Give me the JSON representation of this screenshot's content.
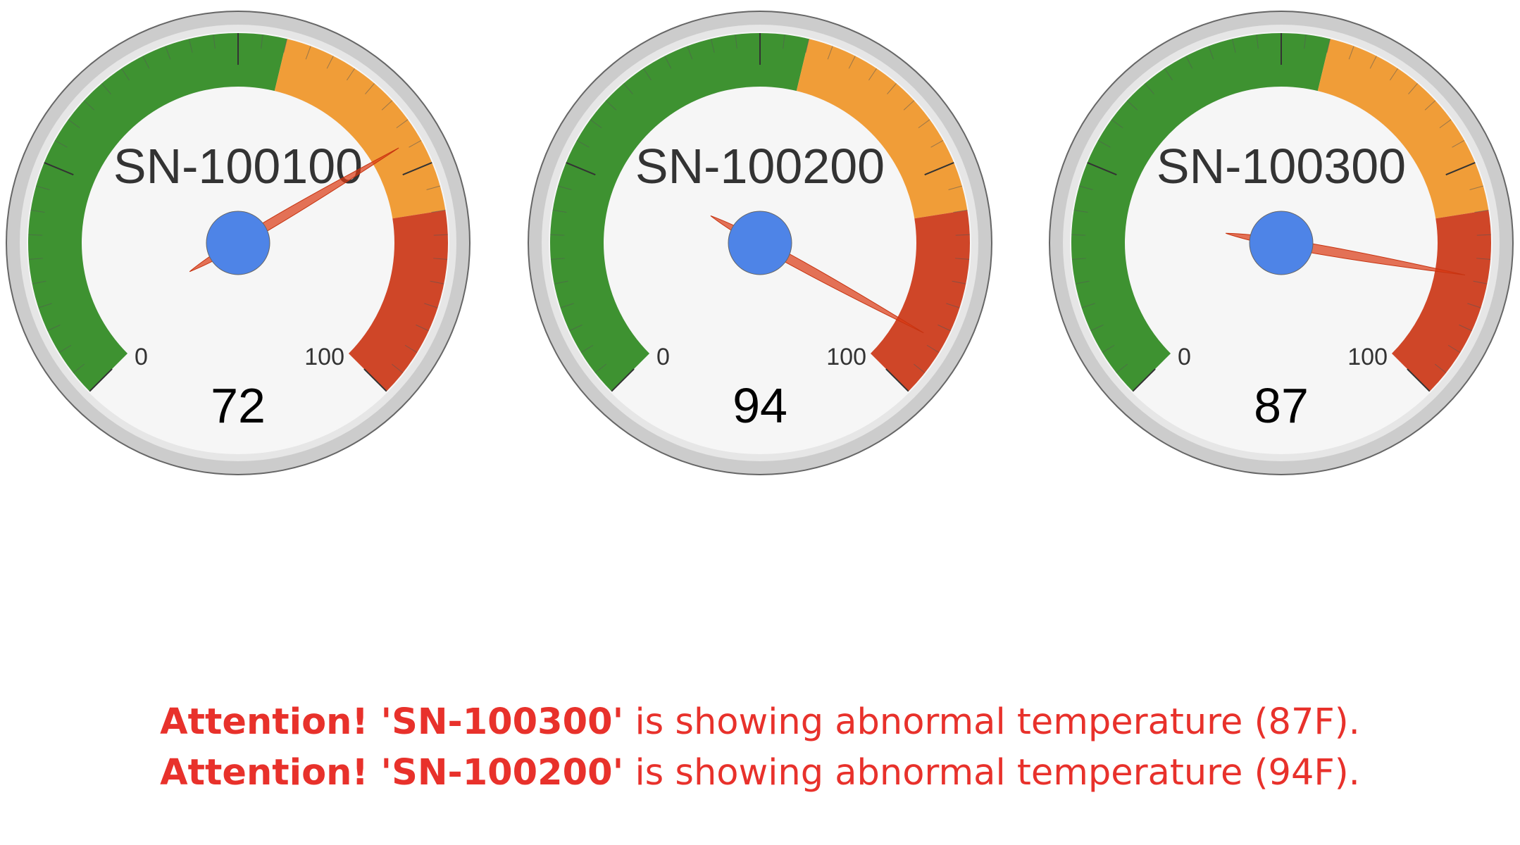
{
  "gauge_config": {
    "min": 0,
    "max": 100,
    "min_label": "0",
    "max_label": "100",
    "ranges": [
      {
        "from": 0,
        "to": 55,
        "color": "#3e9231"
      },
      {
        "from": 55,
        "to": 80,
        "color": "#f09d38"
      },
      {
        "from": 80,
        "to": 100,
        "color": "#cf4628"
      }
    ],
    "major_ticks": 5,
    "minor_ticks_per_major": 10,
    "bezel_color": "#cccccc",
    "face_color": "#f6f6f6",
    "needle_color": "#dc3912",
    "hub_color": "#4e84e7"
  },
  "gauges": [
    {
      "label": "SN-100100",
      "value": 72,
      "value_text": "72"
    },
    {
      "label": "SN-100200",
      "value": 94,
      "value_text": "94"
    },
    {
      "label": "SN-100300",
      "value": 87,
      "value_text": "87"
    }
  ],
  "alerts": [
    {
      "prefix": "Attention! 'SN-100300'",
      "message": " is showing abnormal temperature (87F)."
    },
    {
      "prefix": "Attention! 'SN-100200'",
      "message": " is showing abnormal temperature (94F)."
    }
  ]
}
